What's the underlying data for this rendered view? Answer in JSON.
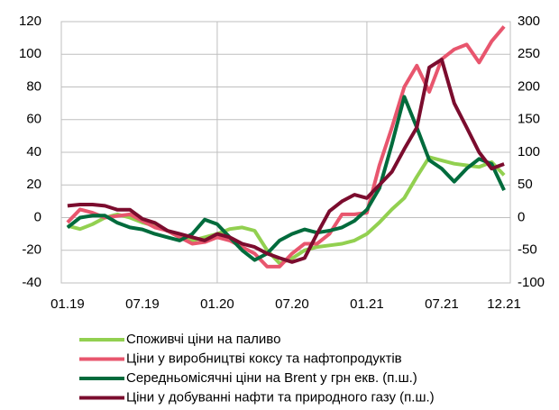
{
  "chart_data": {
    "type": "line",
    "categories": [
      "01.19",
      null,
      null,
      null,
      null,
      null,
      "07.19",
      null,
      null,
      null,
      null,
      null,
      "01.20",
      null,
      null,
      null,
      null,
      null,
      "07.20",
      null,
      null,
      null,
      null,
      null,
      "01.21",
      null,
      null,
      null,
      null,
      null,
      "07.21",
      null,
      null,
      null,
      null,
      "12.21"
    ],
    "ylim": [
      -40,
      120
    ],
    "yticks": [
      -40,
      -20,
      0,
      20,
      40,
      60,
      80,
      100,
      120
    ],
    "y2lim": [
      -100,
      300
    ],
    "y2ticks": [
      -100,
      -50,
      0,
      50,
      100,
      150,
      200,
      250,
      300
    ],
    "grid": true,
    "series": [
      {
        "name": "Споживчі ціни на паливо",
        "color": "#92d050",
        "values": [
          -5,
          -7,
          -4,
          0,
          2,
          0,
          -3,
          -5,
          -8,
          -12,
          -14,
          -12,
          -10,
          -7,
          -6,
          -8,
          -20,
          -28,
          -25,
          -20,
          -18,
          -17,
          -16,
          -14,
          -10,
          -3,
          5,
          12,
          25,
          37,
          35,
          33,
          32,
          31,
          34,
          26
        ]
      },
      {
        "name": "Ціни у виробництві коксу та нафтопродуктів",
        "color": "#e8566e",
        "values": [
          -3,
          5,
          3,
          0,
          1,
          2,
          -2,
          -6,
          -8,
          -12,
          -16,
          -15,
          -12,
          -14,
          -18,
          -22,
          -30,
          -30,
          -22,
          -16,
          -16,
          -10,
          2,
          2,
          3,
          32,
          55,
          80,
          93,
          77,
          97,
          103,
          106,
          95,
          108,
          117
        ]
      },
      {
        "name": "Середньомісячні ціни на Brent у грн екв. (п.ш.)",
        "color": "#006b3c",
        "axis": "y2",
        "values": [
          -15,
          0,
          3,
          3,
          -8,
          -15,
          -18,
          -25,
          -30,
          -35,
          -25,
          -3,
          -10,
          -30,
          -50,
          -65,
          -55,
          -35,
          -25,
          -18,
          -23,
          -20,
          -15,
          -5,
          12,
          45,
          112,
          185,
          138,
          88,
          75,
          55,
          75,
          90,
          82,
          42
        ]
      },
      {
        "name": "Ціни у добуванні нафти та природного газу (п.ш.)",
        "color": "#7b0c2e",
        "axis": "y2",
        "values": [
          18,
          20,
          20,
          18,
          12,
          12,
          -2,
          -8,
          -20,
          -25,
          -30,
          -35,
          -25,
          -30,
          -40,
          -45,
          -55,
          -62,
          -68,
          -62,
          -25,
          10,
          25,
          35,
          30,
          50,
          70,
          105,
          138,
          230,
          242,
          175,
          138,
          100,
          75,
          82
        ]
      }
    ]
  }
}
